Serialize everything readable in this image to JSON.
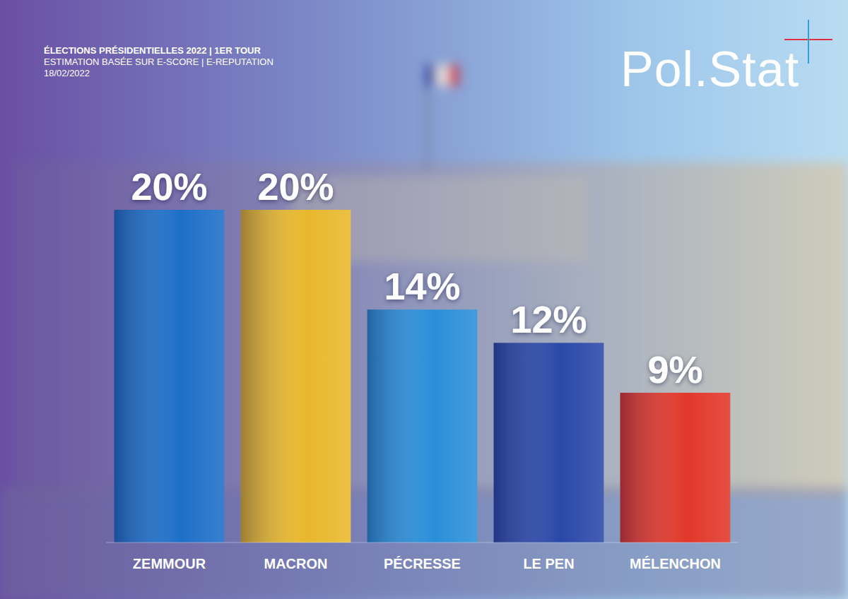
{
  "chart_data": {
    "type": "bar",
    "title": "ÉLECTIONS PRÉSIDENTIELLES 2022 | 1ER TOUR",
    "subtitle": "ESTIMATION BASÉE SUR E-SCORE | E-REPUTATION",
    "annotations": [
      "18/02/2022",
      "Pol.Stat"
    ],
    "categories": [
      "ZEMMOUR",
      "MACRON",
      "PÉCRESSE",
      "LE PEN",
      "MÉLENCHON"
    ],
    "values": [
      20,
      20,
      14,
      12,
      9
    ],
    "value_labels": [
      "20%",
      "20%",
      "14%",
      "12%",
      "9%"
    ],
    "colors": [
      "#1e6fc8",
      "#e8b82c",
      "#2a8fd8",
      "#2a48a8",
      "#e2372a"
    ],
    "ylim": [
      0,
      20
    ],
    "data_labels": true,
    "tick_labels": "x",
    "grid": false
  }
}
